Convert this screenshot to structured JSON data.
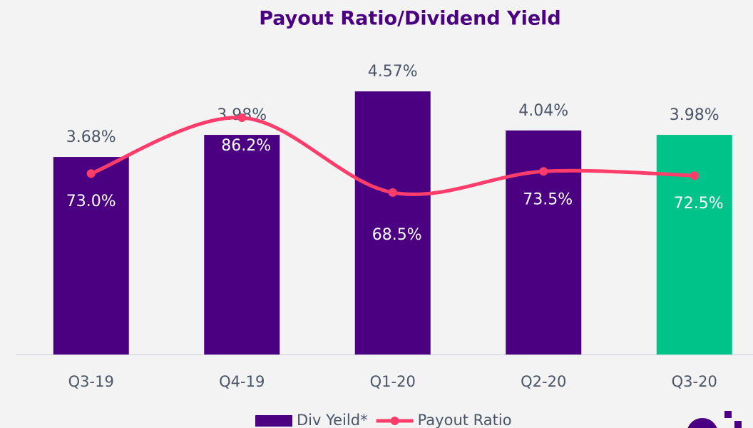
{
  "chart_data": {
    "type": "bar_line",
    "title": "Payout Ratio/Dividend Yield",
    "categories": [
      "Q3-19",
      "Q4-19",
      "Q1-20",
      "Q2-20",
      "Q3-20"
    ],
    "ylim": [
      1,
      5.2
    ],
    "y2lim": [
      30.2,
      103.4
    ],
    "series": [
      {
        "name": "Div Yeild*",
        "type": "bar",
        "colors": [
          "#4b0082",
          "#4b0082",
          "#4b0082",
          "#4b0082",
          "#00c389"
        ],
        "values": [
          3.68,
          3.98,
          4.57,
          4.04,
          3.98
        ],
        "value_labels": [
          "3.68%",
          "3.98%",
          "4.57%",
          "4.04%",
          "3.98%"
        ]
      },
      {
        "name": "Payout Ratio",
        "type": "line",
        "axis": "y2",
        "color": "#ff3d6b",
        "values": [
          73.0,
          86.2,
          68.5,
          73.5,
          72.5
        ],
        "value_labels": [
          "73.0%",
          "86.2%",
          "68.5%",
          "73.5%",
          "72.5%"
        ]
      }
    ]
  }
}
